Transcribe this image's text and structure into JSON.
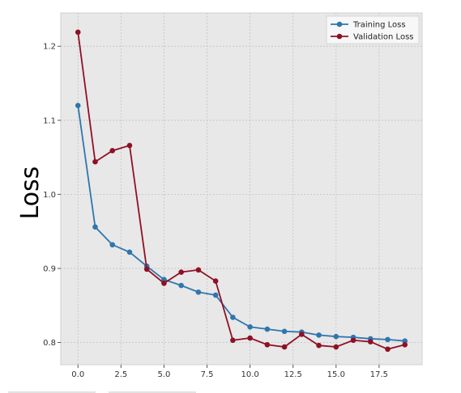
{
  "chart_data": {
    "type": "line",
    "title": "",
    "xlabel": "",
    "ylabel": "Loss",
    "xlim": [
      -1,
      20
    ],
    "ylim": [
      0.77,
      1.245
    ],
    "xticks": [
      0,
      2.5,
      5,
      7.5,
      10,
      12.5,
      15,
      17.5
    ],
    "xtick_labels": [
      "0.0",
      "2.5",
      "5.0",
      "7.5",
      "10.0",
      "12.5",
      "15.0",
      "17.5"
    ],
    "yticks": [
      0.8,
      0.9,
      1.0,
      1.1,
      1.2
    ],
    "ytick_labels": [
      "0.8",
      "0.9",
      "1.0",
      "1.1",
      "1.2"
    ],
    "grid": true,
    "legend_position": "top-right",
    "x": [
      0,
      1,
      2,
      3,
      4,
      5,
      6,
      7,
      8,
      9,
      10,
      11,
      12,
      13,
      14,
      15,
      16,
      17,
      18,
      19
    ],
    "series": [
      {
        "name": "Training Loss",
        "color": "#2f76ad",
        "values": [
          1.12,
          0.956,
          0.932,
          0.922,
          0.903,
          0.885,
          0.877,
          0.868,
          0.864,
          0.834,
          0.821,
          0.818,
          0.815,
          0.814,
          0.81,
          0.808,
          0.807,
          0.805,
          0.804,
          0.802
        ]
      },
      {
        "name": "Validation Loss",
        "color": "#8f1025",
        "values": [
          1.219,
          1.044,
          1.059,
          1.066,
          0.899,
          0.88,
          0.895,
          0.898,
          0.883,
          0.803,
          0.806,
          0.797,
          0.794,
          0.811,
          0.796,
          0.794,
          0.803,
          0.801,
          0.791,
          0.797
        ]
      }
    ]
  }
}
